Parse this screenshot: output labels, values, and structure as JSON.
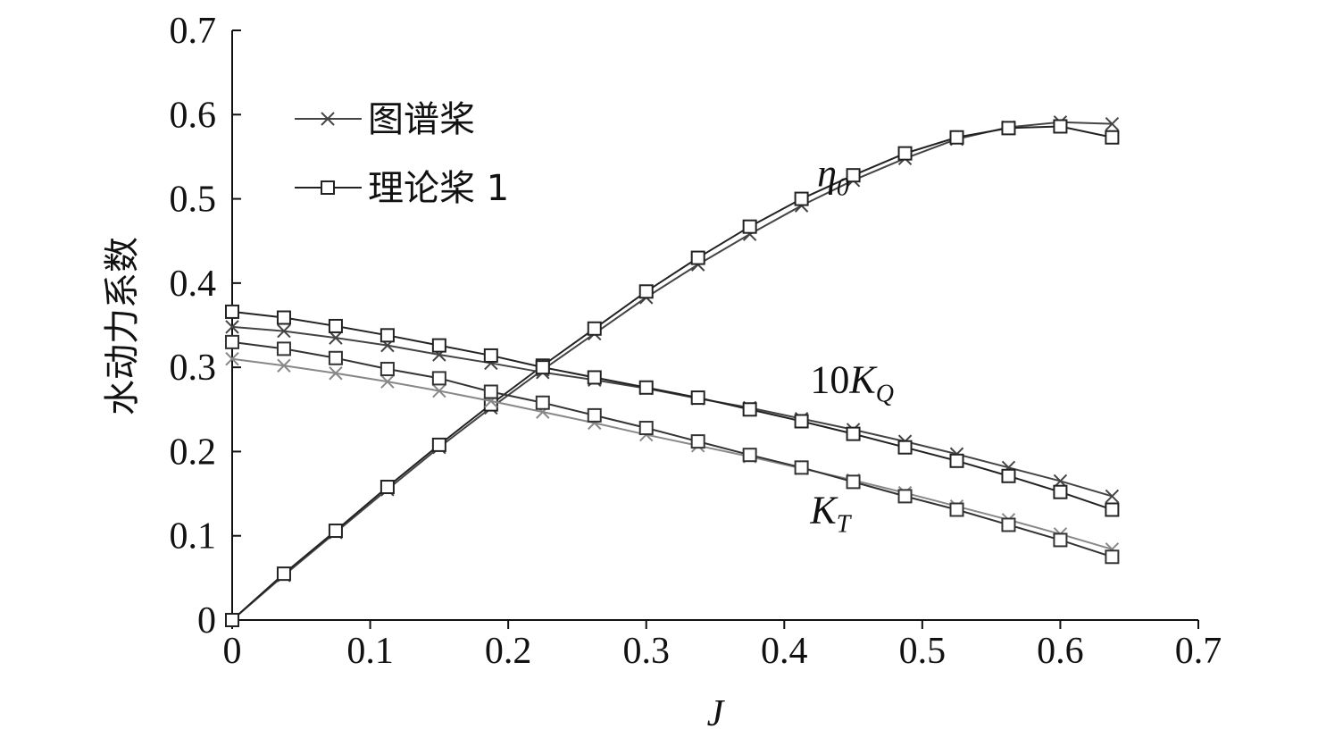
{
  "chart_data": {
    "type": "line",
    "xlabel": "J",
    "ylabel": "水动力系数",
    "xlim": [
      0,
      0.7
    ],
    "ylim": [
      0,
      0.7
    ],
    "xticks": [
      "0",
      "0.1",
      "0.2",
      "0.3",
      "0.4",
      "0.5",
      "0.6",
      "0.7"
    ],
    "yticks": [
      "0",
      "0.1",
      "0.2",
      "0.3",
      "0.4",
      "0.5",
      "0.6",
      "0.7"
    ],
    "grid": false,
    "legend_position": "top-left",
    "legend": [
      {
        "label": "图谱桨",
        "marker": "x",
        "color": "#444444"
      },
      {
        "label": "理论桨 1",
        "marker": "square",
        "color": "#222222"
      }
    ],
    "curve_labels": [
      {
        "text": "η",
        "sub": "0",
        "x": 0.385,
        "y": 0.515
      },
      {
        "text": "10K",
        "sub": "Q",
        "x": 0.38,
        "y": 0.27
      },
      {
        "text": "K",
        "sub": "T",
        "x": 0.38,
        "y": 0.115
      }
    ],
    "x": [
      0,
      0.0375,
      0.075,
      0.1125,
      0.15,
      0.1875,
      0.225,
      0.2625,
      0.3,
      0.3375,
      0.375,
      0.4125,
      0.45,
      0.4875,
      0.525,
      0.5625,
      0.6,
      0.6375
    ],
    "series": [
      {
        "name": "图谱桨",
        "group": "eta0",
        "marker": "x",
        "color": "#444444",
        "values": [
          0,
          0.053,
          0.104,
          0.155,
          0.205,
          0.252,
          0.297,
          0.34,
          0.383,
          0.422,
          0.458,
          0.492,
          0.522,
          0.548,
          0.571,
          0.585,
          0.591,
          0.589
        ]
      },
      {
        "name": "理论桨 1",
        "group": "eta0",
        "marker": "square",
        "color": "#222222",
        "values": [
          0,
          0.055,
          0.106,
          0.158,
          0.208,
          0.256,
          0.302,
          0.346,
          0.39,
          0.43,
          0.467,
          0.5,
          0.528,
          0.554,
          0.573,
          0.584,
          0.586,
          0.573
        ]
      },
      {
        "name": "图谱桨",
        "group": "10KQ",
        "marker": "x",
        "color": "#444444",
        "values": [
          0.348,
          0.343,
          0.335,
          0.326,
          0.315,
          0.305,
          0.294,
          0.285,
          0.275,
          0.263,
          0.252,
          0.239,
          0.226,
          0.212,
          0.197,
          0.181,
          0.165,
          0.147
        ]
      },
      {
        "name": "理论桨 1",
        "group": "10KQ",
        "marker": "square",
        "color": "#222222",
        "values": [
          0.366,
          0.359,
          0.349,
          0.338,
          0.326,
          0.314,
          0.3,
          0.288,
          0.276,
          0.264,
          0.25,
          0.236,
          0.221,
          0.205,
          0.189,
          0.171,
          0.152,
          0.131
        ]
      },
      {
        "name": "图谱桨",
        "group": "KT",
        "marker": "x",
        "color": "#888888",
        "values": [
          0.31,
          0.302,
          0.293,
          0.283,
          0.272,
          0.26,
          0.247,
          0.234,
          0.22,
          0.207,
          0.194,
          0.18,
          0.166,
          0.151,
          0.135,
          0.119,
          0.102,
          0.084
        ]
      },
      {
        "name": "理论桨 1",
        "group": "KT",
        "marker": "square",
        "color": "#333333",
        "values": [
          0.33,
          0.322,
          0.311,
          0.298,
          0.287,
          0.271,
          0.258,
          0.243,
          0.228,
          0.212,
          0.196,
          0.181,
          0.164,
          0.147,
          0.131,
          0.113,
          0.095,
          0.075
        ]
      }
    ]
  }
}
